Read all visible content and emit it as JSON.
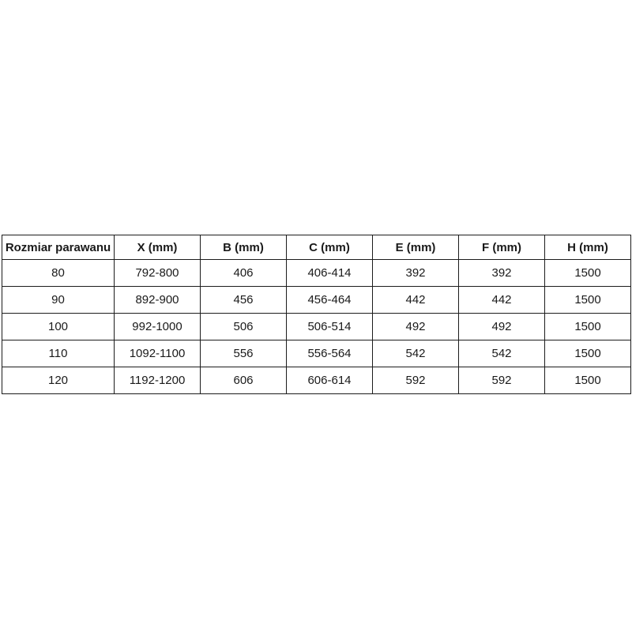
{
  "colors": {
    "background": "#ffffff",
    "border": "#1c1c1c",
    "text": "#1a1a1a"
  },
  "chart_data": {
    "type": "table",
    "columns": [
      "Rozmiar parawanu",
      "X (mm)",
      "B (mm)",
      "C (mm)",
      "E (mm)",
      "F (mm)",
      "H (mm)"
    ],
    "rows": [
      [
        "80",
        "792-800",
        "406",
        "406-414",
        "392",
        "392",
        "1500"
      ],
      [
        "90",
        "892-900",
        "456",
        "456-464",
        "442",
        "442",
        "1500"
      ],
      [
        "100",
        "992-1000",
        "506",
        "506-514",
        "492",
        "492",
        "1500"
      ],
      [
        "110",
        "1092-1100",
        "556",
        "556-564",
        "542",
        "542",
        "1500"
      ],
      [
        "120",
        "1192-1200",
        "606",
        "606-614",
        "592",
        "592",
        "1500"
      ]
    ]
  }
}
